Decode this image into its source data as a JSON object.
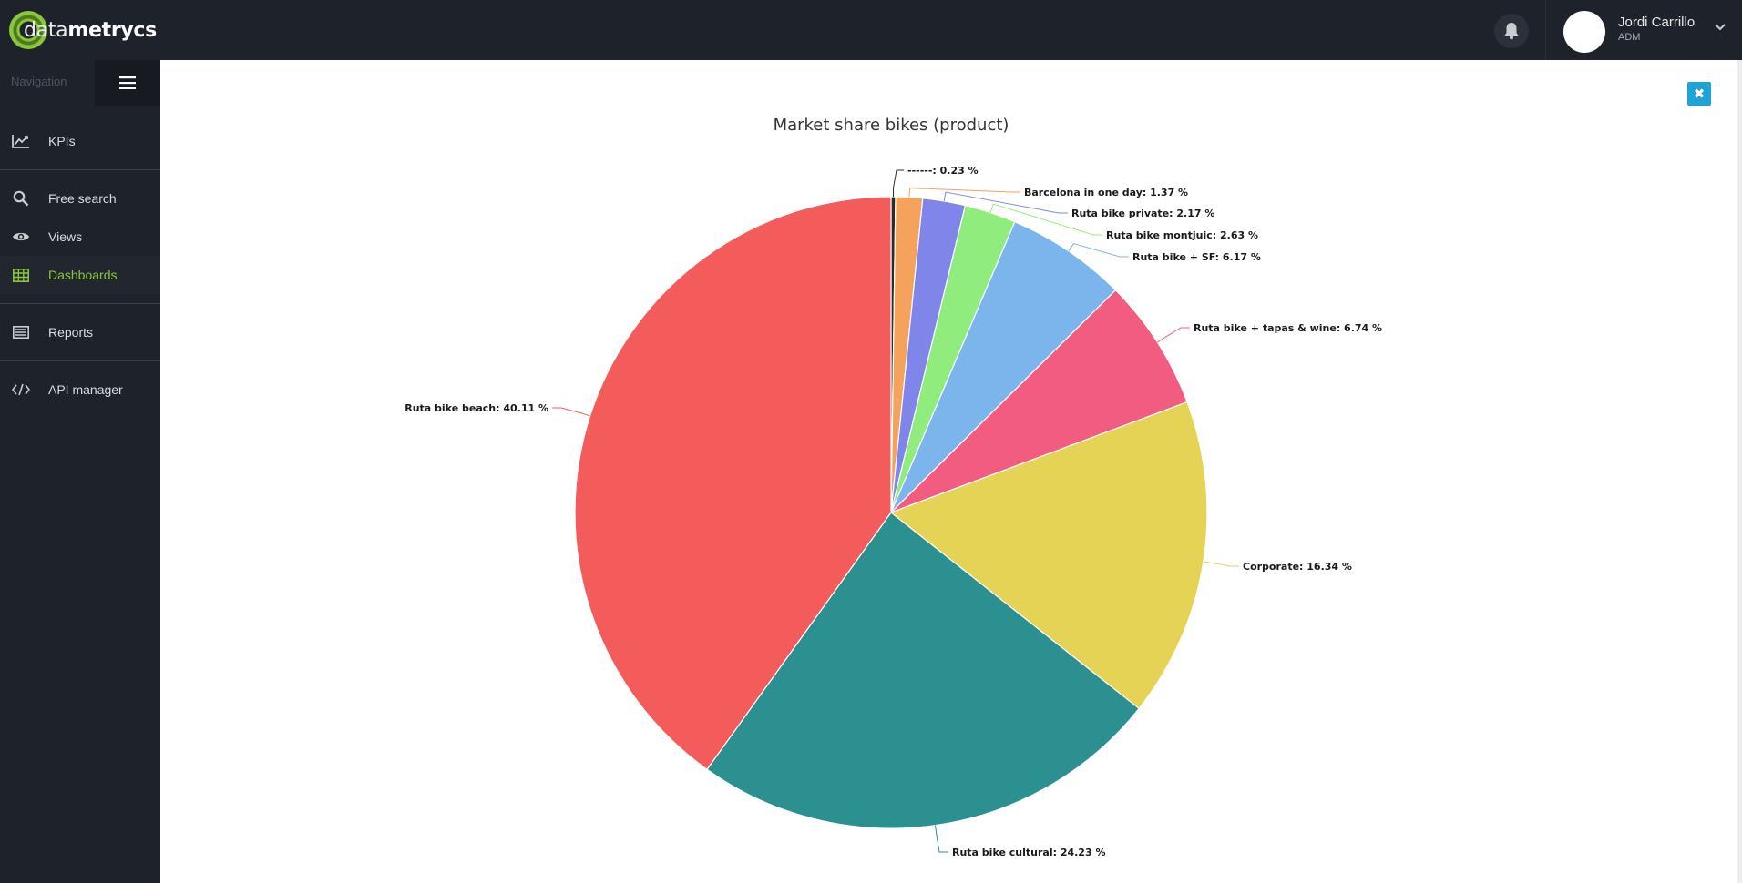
{
  "header": {
    "logo_text_light": "data",
    "logo_text_bold": "metrycs",
    "user_name": "Jordi Carrillo",
    "user_role": "ADM"
  },
  "sidebar": {
    "nav_label": "Navigation",
    "items": [
      {
        "label": "KPIs",
        "icon": "line-chart-icon"
      },
      {
        "label": "Free search",
        "icon": "search-icon"
      },
      {
        "label": "Views",
        "icon": "eye-icon"
      },
      {
        "label": "Dashboards",
        "icon": "table-grid-icon",
        "active": true
      },
      {
        "label": "Reports",
        "icon": "list-report-icon"
      },
      {
        "label": "API manager",
        "icon": "code-icon"
      }
    ],
    "active_color": "#8cc63f"
  },
  "main": {
    "close_symbol": "✖"
  },
  "chart_data": {
    "type": "pie",
    "title": "Market share bikes (product)",
    "unit": "%",
    "slices": [
      {
        "name": "------",
        "value": 0.23,
        "color": "#2b2b2b"
      },
      {
        "name": "Barcelona in one day",
        "value": 1.37,
        "color": "#f5a25d"
      },
      {
        "name": "Ruta bike private",
        "value": 2.17,
        "color": "#8085e9"
      },
      {
        "name": "Ruta bike montjuic",
        "value": 2.63,
        "color": "#90ed7d"
      },
      {
        "name": "Ruta bike + SF",
        "value": 6.17,
        "color": "#7cb5ec"
      },
      {
        "name": "Ruta bike + tapas & wine",
        "value": 6.74,
        "color": "#f15c80"
      },
      {
        "name": "Corporate",
        "value": 16.34,
        "color": "#e4d354"
      },
      {
        "name": "Ruta bike cultural",
        "value": 24.23,
        "color": "#2b908f"
      },
      {
        "name": "Ruta bike beach",
        "value": 40.11,
        "color": "#f45b5b"
      }
    ]
  }
}
